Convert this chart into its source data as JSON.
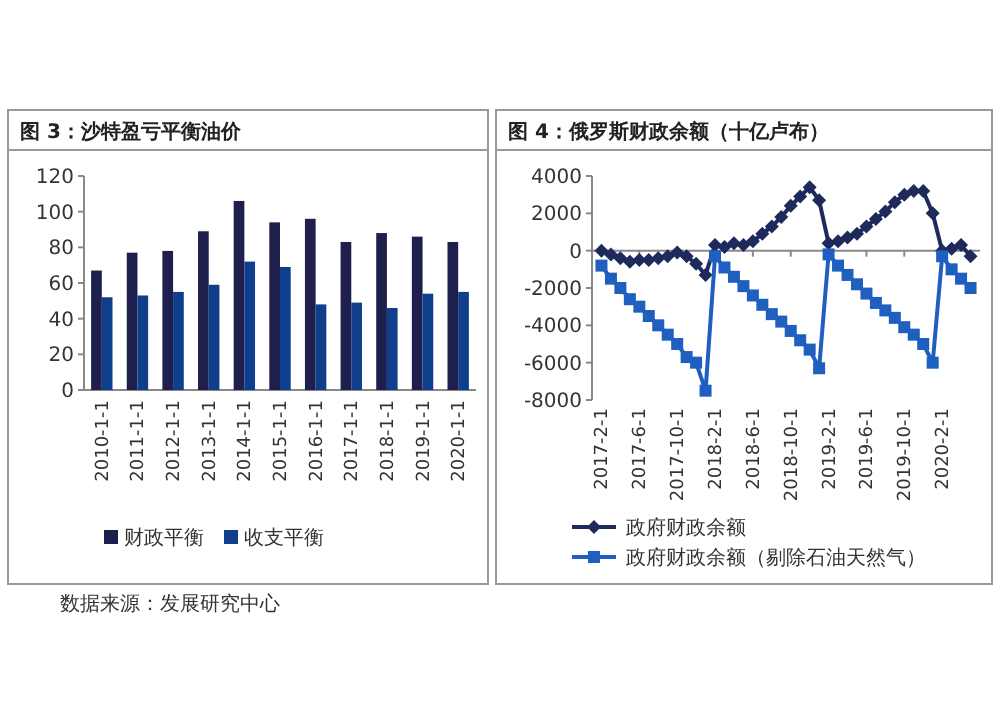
{
  "chart_data": [
    {
      "type": "bar",
      "title": "图 3：沙特盈亏平衡油价",
      "categories": [
        "2010-1-1",
        "2011-1-1",
        "2012-1-1",
        "2013-1-1",
        "2014-1-1",
        "2015-1-1",
        "2016-1-1",
        "2017-1-1",
        "2018-1-1",
        "2019-1-1",
        "2020-1-1"
      ],
      "series": [
        {
          "name": "财政平衡",
          "color": "#1e1f4d",
          "values": [
            67,
            77,
            78,
            89,
            106,
            94,
            96,
            83,
            88,
            86,
            83
          ]
        },
        {
          "name": "收支平衡",
          "color": "#0f3f8c",
          "values": [
            52,
            53,
            55,
            59,
            72,
            69,
            48,
            49,
            46,
            54,
            55
          ]
        }
      ],
      "ylim": [
        0,
        120
      ],
      "yticks": [
        0,
        20,
        40,
        60,
        80,
        100,
        120
      ],
      "legend": "bottom",
      "annotations": [
        "数据来源：发展研究中心"
      ]
    },
    {
      "type": "line",
      "title": "图 4：俄罗斯财政余额（十亿卢布）",
      "x": [
        "2017-02",
        "2017-03",
        "2017-04",
        "2017-05",
        "2017-06",
        "2017-07",
        "2017-08",
        "2017-09",
        "2017-10",
        "2017-11",
        "2017-12",
        "2018-01",
        "2018-02",
        "2018-03",
        "2018-04",
        "2018-05",
        "2018-06",
        "2018-07",
        "2018-08",
        "2018-09",
        "2018-10",
        "2018-11",
        "2018-12",
        "2019-01",
        "2019-02",
        "2019-03",
        "2019-04",
        "2019-05",
        "2019-06",
        "2019-07",
        "2019-08",
        "2019-09",
        "2019-10",
        "2019-11",
        "2019-12",
        "2020-01",
        "2020-02",
        "2020-03",
        "2020-04",
        "2020-05"
      ],
      "series": [
        {
          "name": "政府财政余额",
          "color": "#1f2a5c",
          "marker": "diamond",
          "values": [
            0,
            -200,
            -400,
            -600,
            -500,
            -500,
            -400,
            -300,
            -100,
            -300,
            -700,
            -1300,
            300,
            200,
            400,
            300,
            500,
            900,
            1300,
            1800,
            2400,
            2900,
            3400,
            2700,
            400,
            500,
            700,
            900,
            1300,
            1700,
            2100,
            2600,
            3000,
            3200,
            3200,
            2000,
            0,
            100,
            300,
            -300
          ]
        },
        {
          "name": "政府财政余额（剔除石油天然气）",
          "color": "#1f5fbf",
          "marker": "square",
          "values": [
            -800,
            -1500,
            -2000,
            -2600,
            -3000,
            -3500,
            -4000,
            -4500,
            -5000,
            -5700,
            -6000,
            -7500,
            -300,
            -900,
            -1400,
            -1900,
            -2400,
            -2900,
            -3400,
            -3800,
            -4300,
            -4800,
            -5300,
            -6300,
            -200,
            -800,
            -1300,
            -1800,
            -2300,
            -2800,
            -3200,
            -3600,
            -4100,
            -4500,
            -5000,
            -6000,
            -300,
            -1000,
            -1500,
            -2000
          ]
        }
      ],
      "xlim": [
        "2017-01",
        "2020-06"
      ],
      "xticks": [
        {
          "value": "2017-02",
          "label": "2017-2-1"
        },
        {
          "value": "2017-06",
          "label": "2017-6-1"
        },
        {
          "value": "2017-10",
          "label": "2017-10-1"
        },
        {
          "value": "2018-02",
          "label": "2018-2-1"
        },
        {
          "value": "2018-06",
          "label": "2018-6-1"
        },
        {
          "value": "2018-10",
          "label": "2018-10-1"
        },
        {
          "value": "2019-02",
          "label": "2019-2-1"
        },
        {
          "value": "2019-06",
          "label": "2019-6-1"
        },
        {
          "value": "2019-10",
          "label": "2019-10-1"
        },
        {
          "value": "2020-02",
          "label": "2020-2-1"
        }
      ],
      "ylim": [
        -8000,
        4000
      ],
      "yticks": [
        -8000,
        -6000,
        -4000,
        -2000,
        0,
        2000,
        4000
      ],
      "legend": "bottom"
    }
  ]
}
